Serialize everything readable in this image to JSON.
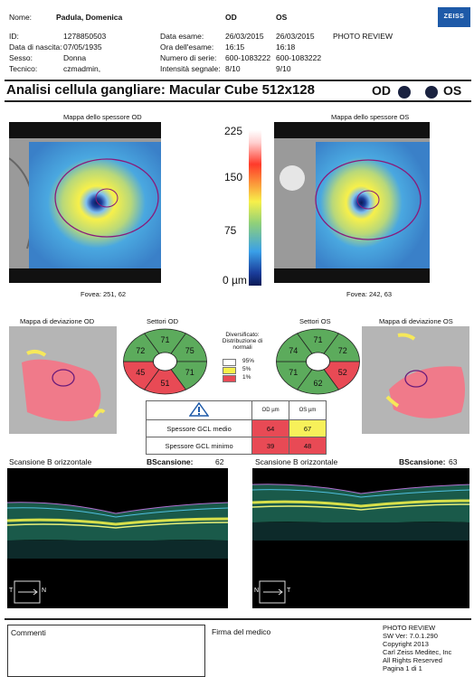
{
  "header": {
    "rows": [
      {
        "label": "Nome:",
        "value": "Padula, Domenica",
        "label2": "Data esame:",
        "od": "26/03/2015",
        "os": "26/03/2015",
        "extra": "PHOTO REVIEW"
      },
      {
        "label": "ID:",
        "value": "1278850503",
        "label2": "Ora dell'esame:",
        "od": "16:15",
        "os": "16:18",
        "extra": ""
      },
      {
        "label": "Data di nascita:",
        "value": "07/05/1935",
        "label2": "Numero di serie:",
        "od": "600-1083222",
        "os": "600-1083222",
        "extra": ""
      },
      {
        "label": "Sesso:",
        "value": "Donna",
        "label2": "Intensità segnale:",
        "od": "8/10",
        "os": "9/10",
        "extra": ""
      },
      {
        "label": "Tecnico:",
        "value": "czmadmin,",
        "label2": "",
        "od": "",
        "os": "",
        "extra": ""
      }
    ],
    "col_od": "OD",
    "col_os": "OS",
    "logo": "ZEISS"
  },
  "title": "Analisi cellula gangliare: Macular Cube 512x128",
  "eye_od": "OD",
  "eye_os": "OS",
  "thickness": {
    "od_title": "Mappa dello spessore OD",
    "os_title": "Mappa dello spessore OS",
    "od_fovea": "Fovea: 251, 62",
    "os_fovea": "Fovea: 242, 63",
    "scale_labels": [
      "225",
      "150",
      "75",
      "0 µm"
    ]
  },
  "deviation": {
    "od_title": "Mappa di deviazione OD",
    "os_title": "Mappa di deviazione OS"
  },
  "sectors": {
    "od_title": "Settori OD",
    "os_title": "Settori OS",
    "od_values": {
      "top": "71",
      "upper_left": "72",
      "upper_right": "75",
      "lower_left": "45",
      "bottom": "51",
      "lower_right": "71"
    },
    "os_values": {
      "top": "71",
      "upper_left": "74",
      "upper_right": "72",
      "lower_left": "71",
      "bottom": "62",
      "lower_right": "52"
    }
  },
  "legend": {
    "title": "Diversificato: Distribuzione di normali",
    "items": [
      {
        "label": "95%",
        "color": "#ffffff"
      },
      {
        "label": "5%",
        "color": "#f6f04a"
      },
      {
        "label": "1%",
        "color": "#e84a55"
      }
    ]
  },
  "colors": {
    "green": "#5cab5c",
    "red": "#e84a55",
    "yellow": "#f7f05a",
    "white": "#ffffff"
  },
  "gcl_table": {
    "warning_icon": "warning-icon",
    "col_od": "OD µm",
    "col_os": "OS µm",
    "rows": [
      {
        "label": "Spessore GCL medio",
        "od": "64",
        "os": "67",
        "od_color": "#e84a55",
        "os_color": "#f7f05a"
      },
      {
        "label": "Spessore GCL minimo",
        "od": "39",
        "os": "48",
        "od_color": "#e84a55",
        "os_color": "#e84a55"
      }
    ]
  },
  "bscan": {
    "od_title": "Scansione B orizzontale",
    "od_label": "BScansione:",
    "od_value": "62",
    "os_title": "Scansione B orizzontale",
    "os_label": "BScansione:",
    "os_value": "63",
    "t": "T",
    "n": "N"
  },
  "footer": {
    "comments": "Commenti",
    "signature": "Firma del medico",
    "info": [
      "PHOTO REVIEW",
      "SW Ver: 7.0.1.290",
      "Copyright 2013",
      "Carl Zeiss Meditec, Inc",
      "All Rights Reserved",
      "Pagina 1 di 1"
    ]
  }
}
